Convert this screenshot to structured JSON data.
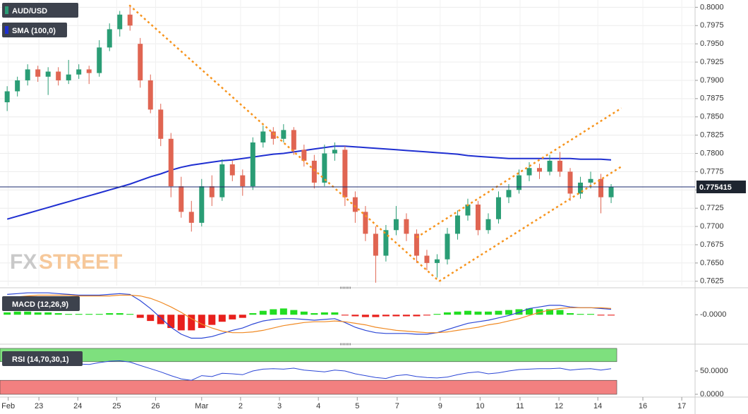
{
  "chart_data": [
    {
      "type": "candlestick",
      "title": "AUD/USD",
      "up_color": "#2a9d75",
      "down_color": "#e06552",
      "candles": [
        [
          0.787,
          0.7892,
          0.7858,
          0.7885
        ],
        [
          0.7885,
          0.7905,
          0.7878,
          0.79
        ],
        [
          0.79,
          0.7922,
          0.7893,
          0.7915
        ],
        [
          0.7915,
          0.792,
          0.7898,
          0.7905
        ],
        [
          0.7905,
          0.7918,
          0.788,
          0.7912
        ],
        [
          0.7912,
          0.7918,
          0.7893,
          0.79
        ],
        [
          0.79,
          0.7928,
          0.7895,
          0.7908
        ],
        [
          0.7908,
          0.7922,
          0.7902,
          0.7915
        ],
        [
          0.7915,
          0.792,
          0.7895,
          0.791
        ],
        [
          0.791,
          0.7955,
          0.7905,
          0.7945
        ],
        [
          0.7945,
          0.7978,
          0.794,
          0.797
        ],
        [
          0.797,
          0.7995,
          0.796,
          0.799
        ],
        [
          0.799,
          0.8003,
          0.7968,
          0.7975
        ],
        [
          0.795,
          0.7958,
          0.789,
          0.79
        ],
        [
          0.79,
          0.7908,
          0.7855,
          0.786
        ],
        [
          0.786,
          0.7868,
          0.781,
          0.782
        ],
        [
          0.782,
          0.7828,
          0.774,
          0.7755
        ],
        [
          0.7755,
          0.7768,
          0.7712,
          0.772
        ],
        [
          0.772,
          0.7735,
          0.7693,
          0.7705
        ],
        [
          0.7705,
          0.7765,
          0.77,
          0.7755
        ],
        [
          0.7755,
          0.777,
          0.7728,
          0.774
        ],
        [
          0.774,
          0.7792,
          0.7735,
          0.7785
        ],
        [
          0.7785,
          0.779,
          0.7762,
          0.777
        ],
        [
          0.777,
          0.7778,
          0.7742,
          0.7755
        ],
        [
          0.7755,
          0.7822,
          0.775,
          0.7815
        ],
        [
          0.7815,
          0.7838,
          0.7808,
          0.783
        ],
        [
          0.783,
          0.7836,
          0.7812,
          0.782
        ],
        [
          0.782,
          0.784,
          0.7815,
          0.7832
        ],
        [
          0.7832,
          0.7836,
          0.7798,
          0.7805
        ],
        [
          0.7805,
          0.7812,
          0.7782,
          0.779
        ],
        [
          0.779,
          0.7798,
          0.7752,
          0.776
        ],
        [
          0.776,
          0.7812,
          0.7755,
          0.78
        ],
        [
          0.78,
          0.7815,
          0.779,
          0.7805
        ],
        [
          0.7805,
          0.781,
          0.7728,
          0.774
        ],
        [
          0.774,
          0.7748,
          0.7705,
          0.772
        ],
        [
          0.772,
          0.7728,
          0.768,
          0.769
        ],
        [
          0.769,
          0.77,
          0.7623,
          0.766
        ],
        [
          0.766,
          0.7702,
          0.7652,
          0.7695
        ],
        [
          0.7695,
          0.7728,
          0.7688,
          0.771
        ],
        [
          0.771,
          0.7718,
          0.768,
          0.769
        ],
        [
          0.769,
          0.7696,
          0.765,
          0.766
        ],
        [
          0.766,
          0.7668,
          0.764,
          0.765
        ],
        [
          0.765,
          0.7662,
          0.763,
          0.7655
        ],
        [
          0.7655,
          0.7698,
          0.7648,
          0.769
        ],
        [
          0.769,
          0.7722,
          0.7682,
          0.7715
        ],
        [
          0.7715,
          0.7738,
          0.7708,
          0.773
        ],
        [
          0.773,
          0.7735,
          0.7688,
          0.7695
        ],
        [
          0.7695,
          0.7718,
          0.769,
          0.771
        ],
        [
          0.771,
          0.7748,
          0.7704,
          0.774
        ],
        [
          0.774,
          0.7758,
          0.7732,
          0.775
        ],
        [
          0.775,
          0.7778,
          0.7745,
          0.777
        ],
        [
          0.777,
          0.7788,
          0.7762,
          0.778
        ],
        [
          0.778,
          0.7786,
          0.7765,
          0.7775
        ],
        [
          0.7775,
          0.7798,
          0.777,
          0.779
        ],
        [
          0.779,
          0.7802,
          0.7768,
          0.7775
        ],
        [
          0.7775,
          0.778,
          0.7735,
          0.7745
        ],
        [
          0.7745,
          0.7768,
          0.7738,
          0.776
        ],
        [
          0.776,
          0.7775,
          0.7752,
          0.7765
        ],
        [
          0.7765,
          0.7772,
          0.7718,
          0.774
        ],
        [
          0.774,
          0.7758,
          0.7732,
          0.7754
        ]
      ],
      "series": [
        {
          "name": "SMA (100,0)",
          "color": "#1f2fd1",
          "values": [
            0.771,
            0.7714,
            0.7718,
            0.7722,
            0.7726,
            0.773,
            0.7734,
            0.7738,
            0.7742,
            0.7746,
            0.775,
            0.7754,
            0.7758,
            0.7763,
            0.7768,
            0.7772,
            0.7777,
            0.7781,
            0.7784,
            0.7786,
            0.7788,
            0.779,
            0.7791,
            0.7793,
            0.7795,
            0.7797,
            0.7799,
            0.78,
            0.7802,
            0.7804,
            0.7806,
            0.7808,
            0.781,
            0.781,
            0.7809,
            0.7808,
            0.7807,
            0.7806,
            0.7805,
            0.7804,
            0.7803,
            0.7802,
            0.7801,
            0.78,
            0.7799,
            0.7797,
            0.7796,
            0.7795,
            0.7794,
            0.7793,
            0.7793,
            0.7793,
            0.7793,
            0.7793,
            0.7793,
            0.7793,
            0.7792,
            0.7792,
            0.7792,
            0.7791
          ]
        }
      ],
      "current_price": 0.775415,
      "trendlines": [
        {
          "color": "#f7941d",
          "points": [
            [
              11.93,
              0.8003
            ],
            [
              42.2,
              0.7625
            ]
          ]
        },
        {
          "color": "#f7941d",
          "points": [
            [
              40.0,
              0.7685
            ],
            [
              60.0,
              0.7862
            ]
          ]
        },
        {
          "color": "#f7941d",
          "points": [
            [
              42.2,
              0.7625
            ],
            [
              60.0,
              0.7782
            ]
          ]
        }
      ],
      "watermark": [
        "FX",
        "STREET"
      ],
      "ylim": [
        0.7619,
        0.801
      ],
      "yticks": [
        0.7625,
        {
          "value": 0.765,
          "label": "0.7650"
        },
        0.7675,
        {
          "value": 0.77,
          "label": "0.7700"
        },
        0.7725,
        {
          "value": 0.775,
          "label": "0.7750"
        },
        0.7775,
        {
          "value": 0.78,
          "label": "0.7800"
        },
        0.7825,
        {
          "value": 0.785,
          "label": "0.7850"
        },
        0.7875,
        {
          "value": 0.79,
          "label": "0.7900"
        },
        0.7925,
        {
          "value": 0.795,
          "label": "0.7950"
        },
        0.7975,
        {
          "value": 0.8,
          "label": "0.8000"
        }
      ],
      "xlim": [
        -0.7,
        67.2
      ],
      "xticks": [
        {
          "value": 0.1,
          "label": "Feb"
        },
        {
          "value": 3.1,
          "label": "23"
        },
        {
          "value": 6.9,
          "label": "24"
        },
        {
          "value": 10.7,
          "label": "25"
        },
        {
          "value": 14.5,
          "label": "26"
        },
        {
          "value": 19.0,
          "label": "Mar"
        },
        {
          "value": 22.8,
          "label": "2"
        },
        {
          "value": 26.6,
          "label": "3"
        },
        {
          "value": 30.4,
          "label": "4"
        },
        {
          "value": 34.2,
          "label": "5"
        },
        {
          "value": 38.1,
          "label": "7"
        },
        {
          "value": 42.3,
          "label": "9"
        },
        {
          "value": 46.2,
          "label": "10"
        },
        {
          "value": 50.1,
          "label": "11"
        },
        {
          "value": 53.9,
          "label": "12"
        },
        {
          "value": 57.7,
          "label": "14"
        },
        {
          "value": 62.1,
          "label": "16"
        },
        {
          "value": 65.9,
          "label": "17"
        }
      ],
      "grid": true
    },
    {
      "type": "macd",
      "title": "MACD (12,26,9)",
      "positive_color": "#22dd22",
      "negative_color": "#e8201c",
      "histogram": [
        0.0003,
        0.0004,
        0.0004,
        0.0003,
        0.0003,
        0.0002,
        0.0001,
        0.0001,
        0.0001,
        0.0001,
        0.0002,
        0.0002,
        0.0001,
        -0.0004,
        -0.0008,
        -0.0012,
        -0.0017,
        -0.002,
        -0.002,
        -0.0017,
        -0.0013,
        -0.0009,
        -0.0006,
        -0.0004,
        0.0002,
        0.0005,
        0.0007,
        0.0008,
        0.0006,
        0.0004,
        0.0002,
        0.0003,
        0.0003,
        -0.0001,
        -0.0002,
        -0.0003,
        -0.0003,
        -0.0002,
        -0.0002,
        -0.0002,
        -0.0002,
        -0.0001,
        0.0001,
        0.0003,
        0.0004,
        0.0005,
        0.0004,
        0.0004,
        0.0005,
        0.0006,
        0.0007,
        0.0008,
        0.0007,
        0.0007,
        0.0006,
        0.0002,
        0.0001,
        0.0001,
        -0.0001,
        -0.0001
      ],
      "lines": [
        {
          "color": "#2b46d6",
          "values": [
            0.0026,
            0.0027,
            0.0028,
            0.0028,
            0.0028,
            0.0027,
            0.0026,
            0.0025,
            0.0025,
            0.0025,
            0.0026,
            0.0027,
            0.0026,
            0.0018,
            0.0008,
            -0.0004,
            -0.0016,
            -0.0025,
            -0.003,
            -0.003,
            -0.0028,
            -0.0024,
            -0.002,
            -0.0017,
            -0.0012,
            -0.0008,
            -0.0006,
            -0.0005,
            -0.0005,
            -0.0006,
            -0.0007,
            -0.0006,
            -0.0005,
            -0.001,
            -0.0016,
            -0.002,
            -0.0023,
            -0.0024,
            -0.0024,
            -0.0024,
            -0.0025,
            -0.0025,
            -0.0023,
            -0.0019,
            -0.0015,
            -0.0011,
            -0.0009,
            -0.0007,
            -0.0004,
            -0.0001,
            0.0003,
            0.0008,
            0.001,
            0.0012,
            0.0012,
            0.001,
            0.0009,
            0.0009,
            0.0008,
            0.0007
          ]
        },
        {
          "color": "#f08a24",
          "values": [
            0.0023,
            0.0023,
            0.0024,
            0.0025,
            0.0025,
            0.0025,
            0.0025,
            0.0024,
            0.0024,
            0.0024,
            0.0024,
            0.0025,
            0.0025,
            0.0024,
            0.0021,
            0.0016,
            0.001,
            0.0003,
            -0.0005,
            -0.0012,
            -0.0017,
            -0.0021,
            -0.0023,
            -0.0023,
            -0.0022,
            -0.002,
            -0.0017,
            -0.0014,
            -0.0012,
            -0.001,
            -0.0009,
            -0.0009,
            -0.0008,
            -0.0009,
            -0.0011,
            -0.0013,
            -0.0016,
            -0.0018,
            -0.002,
            -0.0021,
            -0.0022,
            -0.0023,
            -0.0023,
            -0.0022,
            -0.002,
            -0.0018,
            -0.0016,
            -0.0013,
            -0.0011,
            -0.0008,
            -0.0005,
            -0.0001,
            0.0003,
            0.0006,
            0.0008,
            0.0009,
            0.0009,
            0.0009,
            0.0009,
            0.0008
          ]
        }
      ],
      "ylim": [
        -0.0035,
        0.003
      ],
      "yticks": [
        {
          "value": 0,
          "label": "-0.0000"
        }
      ]
    },
    {
      "type": "rsi",
      "title": "RSI (14,70,30,1)",
      "color": "#2b46d6",
      "upper": 70,
      "lower": 30,
      "upper_color": "#7ee07e",
      "lower_color": "#f28080",
      "values": [
        62,
        64,
        66,
        65,
        65,
        63,
        64,
        65,
        64,
        68,
        71,
        72,
        69,
        62,
        55,
        48,
        40,
        33,
        30,
        40,
        38,
        45,
        44,
        42,
        50,
        54,
        55,
        54,
        56,
        52,
        50,
        48,
        52,
        50,
        44,
        40,
        36,
        34,
        40,
        42,
        38,
        36,
        35,
        37,
        42,
        46,
        48,
        44,
        46,
        50,
        53,
        54,
        55,
        55,
        56,
        52,
        54,
        55,
        52,
        55
      ],
      "ylim": [
        -4.5,
        104.5
      ],
      "yticks": [
        {
          "value": 50,
          "label": "50.0000"
        },
        {
          "value": 0,
          "label": "0.0000"
        }
      ]
    }
  ]
}
